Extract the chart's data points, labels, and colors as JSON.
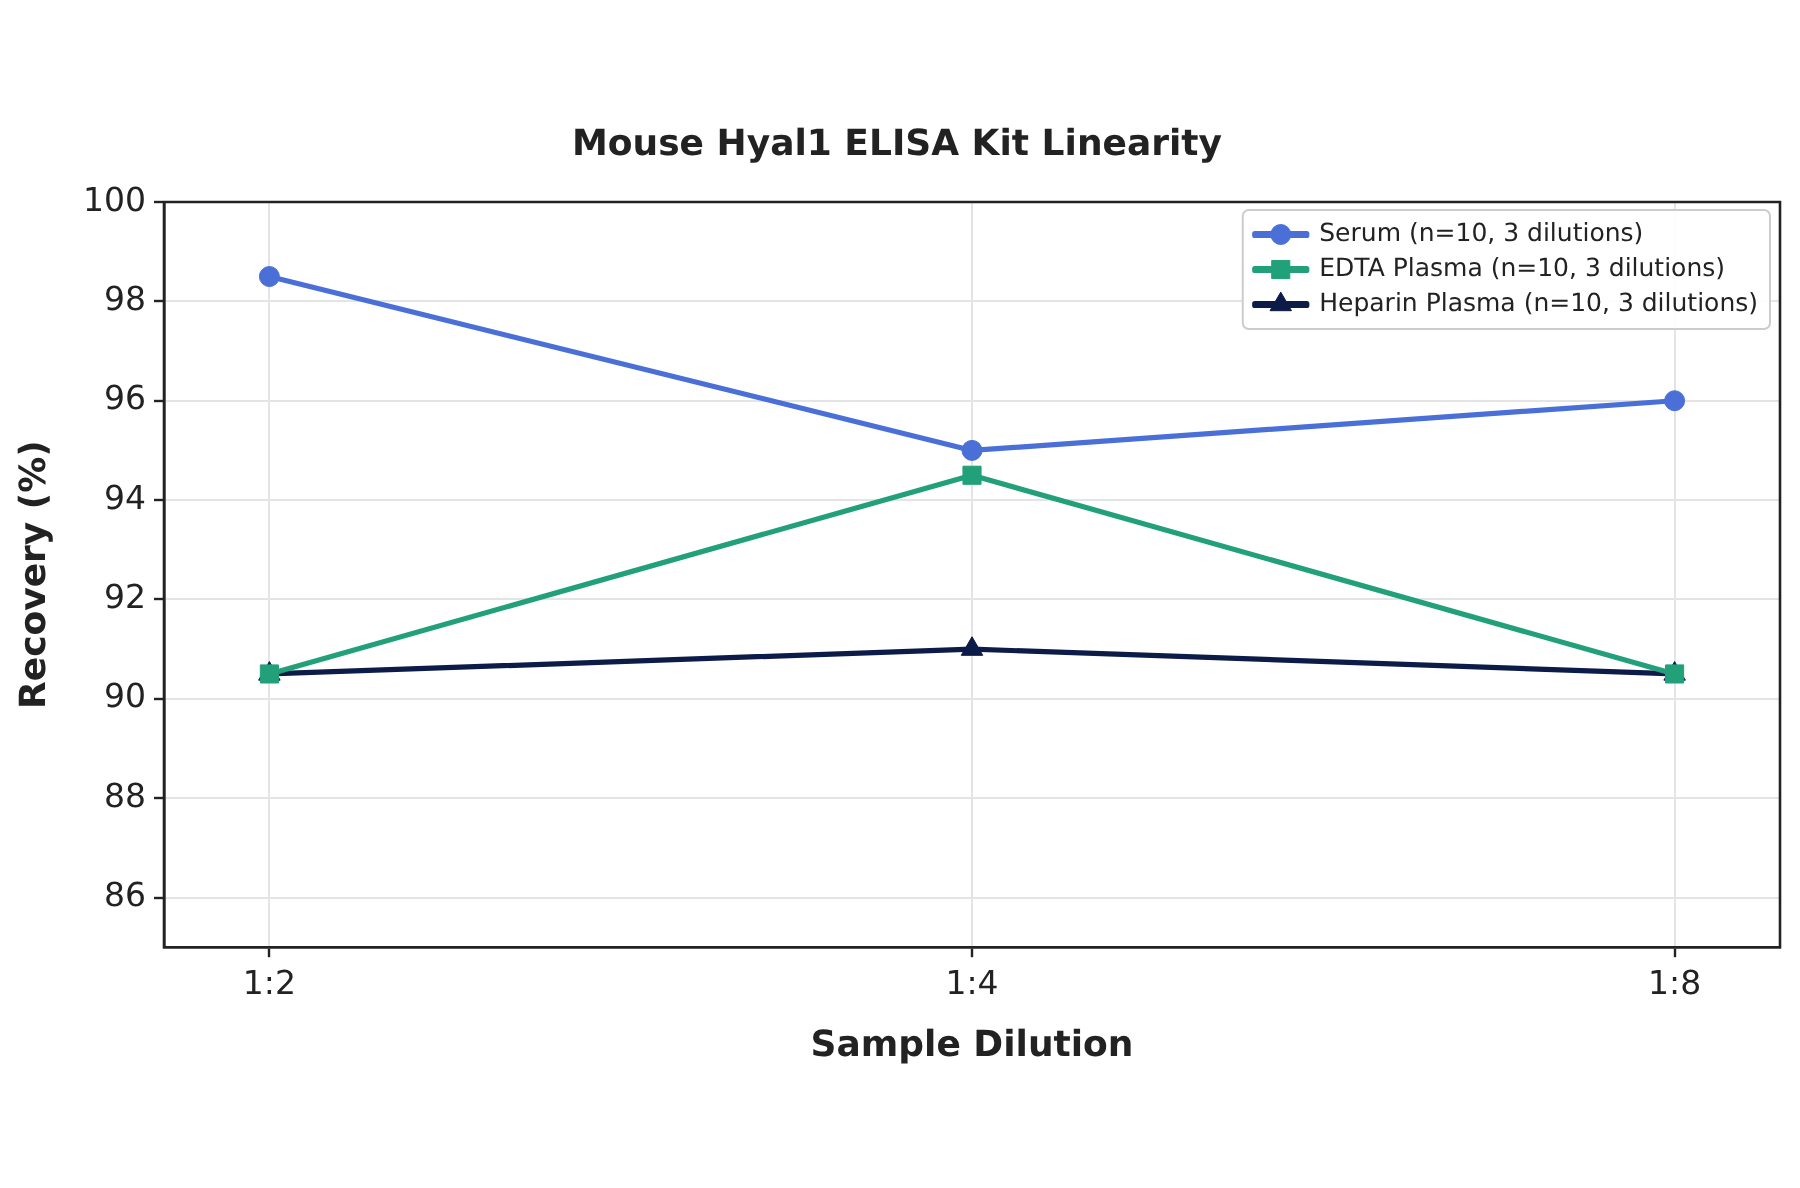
{
  "chart_data": {
    "type": "line",
    "title": "Mouse Hyal1 ELISA Kit Linearity",
    "xlabel": "Sample Dilution",
    "ylabel": "Recovery (%)",
    "categories": [
      "1:2",
      "1:4",
      "1:8"
    ],
    "series": [
      {
        "name": "Serum (n=10, 3 dilutions)",
        "color": "#4a70d8",
        "marker": "circle",
        "values": [
          98.5,
          95,
          96
        ]
      },
      {
        "name": "EDTA Plasma (n=10, 3 dilutions)",
        "color": "#22a07a",
        "marker": "square",
        "values": [
          90.5,
          94.5,
          90.5
        ]
      },
      {
        "name": "Heparin Plasma (n=10, 3 dilutions)",
        "color": "#0c1b47",
        "marker": "triangle",
        "values": [
          90.5,
          91,
          90.5
        ]
      }
    ],
    "ylim": [
      85,
      100
    ],
    "yticks": [
      86,
      88,
      90,
      92,
      94,
      96,
      98,
      100
    ],
    "grid": true,
    "legend": "top right",
    "line_style": "solid"
  }
}
